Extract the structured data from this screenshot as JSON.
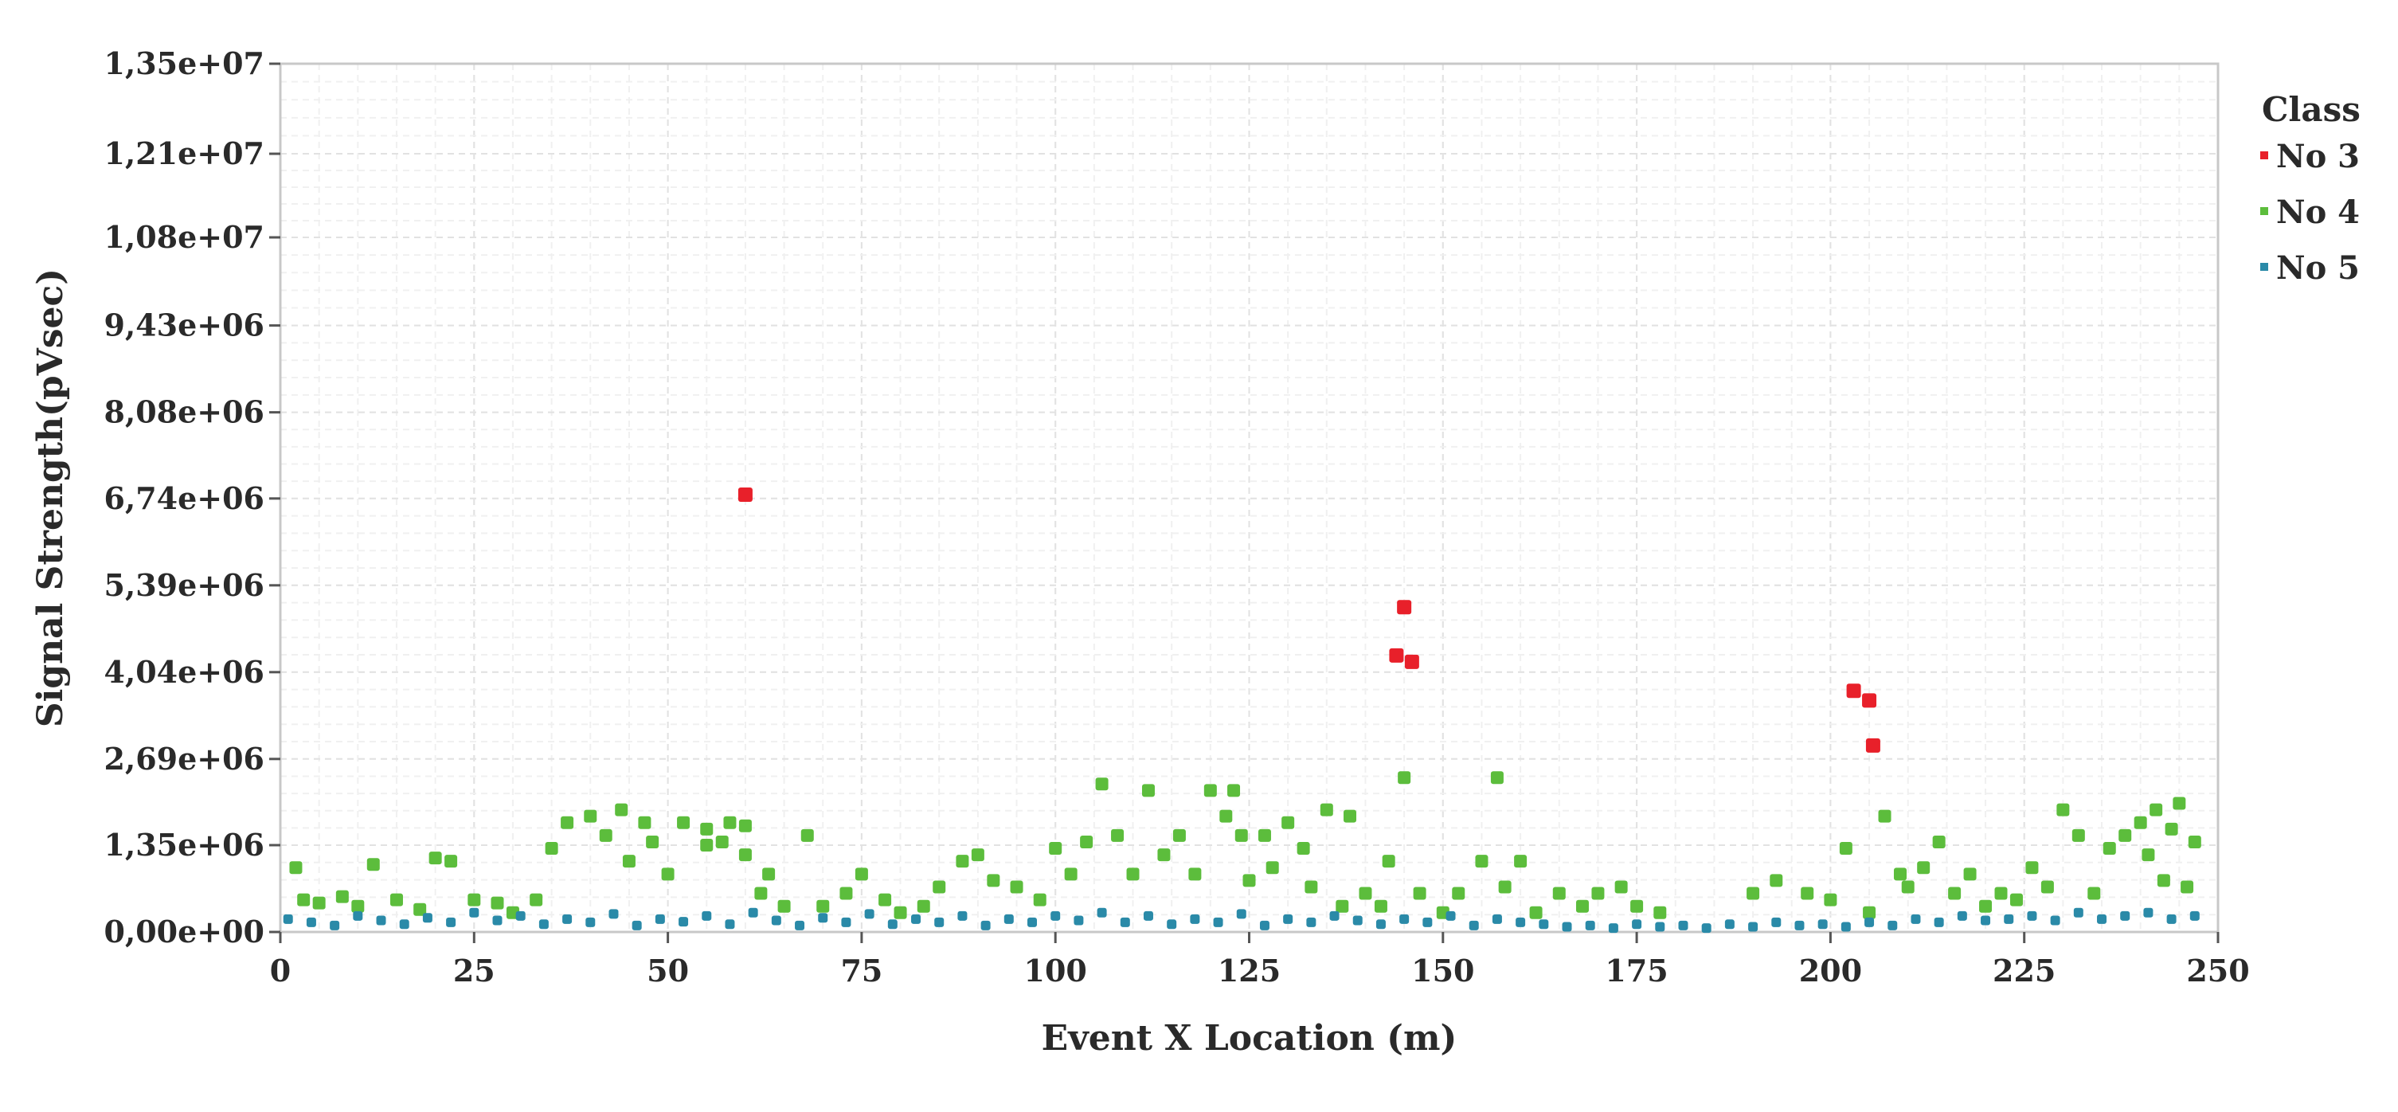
{
  "chart_data": {
    "type": "scatter",
    "title": "",
    "xlabel": "Event X Location (m)",
    "ylabel": "Signal Strength(pVsec)",
    "xlim": [
      0,
      250
    ],
    "ylim": [
      0,
      13500000
    ],
    "x_ticks": [
      0,
      25,
      50,
      75,
      100,
      125,
      150,
      175,
      200,
      225,
      250
    ],
    "x_tick_labels": [
      "0",
      "25",
      "50",
      "75",
      "100",
      "125",
      "150",
      "175",
      "200",
      "225",
      "250"
    ],
    "y_ticks": [
      0,
      1350000,
      2690000,
      4040000,
      5390000,
      6740000,
      8080000,
      9430000,
      10800000,
      12100000,
      13500000
    ],
    "y_tick_labels": [
      "0,00e+00",
      "1,35e+06",
      "2,69e+06",
      "4,04e+06",
      "5,39e+06",
      "6,74e+06",
      "8,08e+06",
      "9,43e+06",
      "1,08e+07",
      "1,21e+07",
      "1,35e+07"
    ],
    "grid": true,
    "legend_placement": "right",
    "legend_title": "Class",
    "series": [
      {
        "name": "No 3",
        "color": "#e8202a",
        "points": [
          [
            60,
            6800000
          ],
          [
            144,
            4300000
          ],
          [
            145,
            5050000
          ],
          [
            146,
            4200000
          ],
          [
            203,
            3750000
          ],
          [
            205,
            3600000
          ],
          [
            205.5,
            2900000
          ]
        ]
      },
      {
        "name": "No 4",
        "color": "#5cbd3c",
        "points": [
          [
            2,
            1000000
          ],
          [
            3,
            500000
          ],
          [
            5,
            450000
          ],
          [
            8,
            550000
          ],
          [
            10,
            400000
          ],
          [
            12,
            1050000
          ],
          [
            15,
            500000
          ],
          [
            18,
            350000
          ],
          [
            20,
            1150000
          ],
          [
            22,
            1100000
          ],
          [
            25,
            500000
          ],
          [
            28,
            450000
          ],
          [
            30,
            300000
          ],
          [
            33,
            500000
          ],
          [
            35,
            1300000
          ],
          [
            37,
            1700000
          ],
          [
            40,
            1800000
          ],
          [
            42,
            1500000
          ],
          [
            44,
            1900000
          ],
          [
            45,
            1100000
          ],
          [
            47,
            1700000
          ],
          [
            48,
            1400000
          ],
          [
            50,
            900000
          ],
          [
            52,
            1700000
          ],
          [
            55,
            1600000
          ],
          [
            55,
            1350000
          ],
          [
            57,
            1400000
          ],
          [
            58,
            1700000
          ],
          [
            60,
            1650000
          ],
          [
            60,
            1200000
          ],
          [
            62,
            600000
          ],
          [
            63,
            900000
          ],
          [
            65,
            400000
          ],
          [
            68,
            1500000
          ],
          [
            70,
            400000
          ],
          [
            73,
            600000
          ],
          [
            75,
            900000
          ],
          [
            78,
            500000
          ],
          [
            80,
            300000
          ],
          [
            83,
            400000
          ],
          [
            85,
            700000
          ],
          [
            88,
            1100000
          ],
          [
            90,
            1200000
          ],
          [
            92,
            800000
          ],
          [
            95,
            700000
          ],
          [
            98,
            500000
          ],
          [
            100,
            1300000
          ],
          [
            102,
            900000
          ],
          [
            104,
            1400000
          ],
          [
            106,
            2300000
          ],
          [
            108,
            1500000
          ],
          [
            110,
            900000
          ],
          [
            112,
            2200000
          ],
          [
            114,
            1200000
          ],
          [
            116,
            1500000
          ],
          [
            118,
            900000
          ],
          [
            120,
            2200000
          ],
          [
            122,
            1800000
          ],
          [
            123,
            2200000
          ],
          [
            124,
            1500000
          ],
          [
            125,
            800000
          ],
          [
            127,
            1500000
          ],
          [
            128,
            1000000
          ],
          [
            130,
            1700000
          ],
          [
            132,
            1300000
          ],
          [
            133,
            700000
          ],
          [
            135,
            1900000
          ],
          [
            137,
            400000
          ],
          [
            138,
            1800000
          ],
          [
            140,
            600000
          ],
          [
            142,
            400000
          ],
          [
            143,
            1100000
          ],
          [
            145,
            2400000
          ],
          [
            147,
            600000
          ],
          [
            150,
            300000
          ],
          [
            152,
            600000
          ],
          [
            155,
            1100000
          ],
          [
            157,
            2400000
          ],
          [
            158,
            700000
          ],
          [
            160,
            1100000
          ],
          [
            162,
            300000
          ],
          [
            165,
            600000
          ],
          [
            168,
            400000
          ],
          [
            170,
            600000
          ],
          [
            173,
            700000
          ],
          [
            175,
            400000
          ],
          [
            178,
            300000
          ],
          [
            190,
            600000
          ],
          [
            193,
            800000
          ],
          [
            197,
            600000
          ],
          [
            200,
            500000
          ],
          [
            202,
            1300000
          ],
          [
            205,
            300000
          ],
          [
            207,
            1800000
          ],
          [
            209,
            900000
          ],
          [
            210,
            700000
          ],
          [
            212,
            1000000
          ],
          [
            214,
            1400000
          ],
          [
            216,
            600000
          ],
          [
            218,
            900000
          ],
          [
            220,
            400000
          ],
          [
            222,
            600000
          ],
          [
            224,
            500000
          ],
          [
            226,
            1000000
          ],
          [
            228,
            700000
          ],
          [
            230,
            1900000
          ],
          [
            232,
            1500000
          ],
          [
            234,
            600000
          ],
          [
            236,
            1300000
          ],
          [
            238,
            1500000
          ],
          [
            240,
            1700000
          ],
          [
            241,
            1200000
          ],
          [
            242,
            1900000
          ],
          [
            243,
            800000
          ],
          [
            244,
            1600000
          ],
          [
            245,
            2000000
          ],
          [
            246,
            700000
          ],
          [
            247,
            1400000
          ]
        ]
      },
      {
        "name": "No 5",
        "color": "#2a8aa8",
        "points": [
          [
            1,
            200000
          ],
          [
            4,
            150000
          ],
          [
            7,
            100000
          ],
          [
            10,
            250000
          ],
          [
            13,
            180000
          ],
          [
            16,
            120000
          ],
          [
            19,
            220000
          ],
          [
            22,
            150000
          ],
          [
            25,
            300000
          ],
          [
            28,
            180000
          ],
          [
            31,
            250000
          ],
          [
            34,
            120000
          ],
          [
            37,
            200000
          ],
          [
            40,
            150000
          ],
          [
            43,
            280000
          ],
          [
            46,
            100000
          ],
          [
            49,
            200000
          ],
          [
            52,
            160000
          ],
          [
            55,
            250000
          ],
          [
            58,
            120000
          ],
          [
            61,
            300000
          ],
          [
            64,
            180000
          ],
          [
            67,
            100000
          ],
          [
            70,
            220000
          ],
          [
            73,
            150000
          ],
          [
            76,
            280000
          ],
          [
            79,
            120000
          ],
          [
            82,
            200000
          ],
          [
            85,
            150000
          ],
          [
            88,
            250000
          ],
          [
            91,
            100000
          ],
          [
            94,
            200000
          ],
          [
            97,
            150000
          ],
          [
            100,
            250000
          ],
          [
            103,
            180000
          ],
          [
            106,
            300000
          ],
          [
            109,
            150000
          ],
          [
            112,
            250000
          ],
          [
            115,
            120000
          ],
          [
            118,
            200000
          ],
          [
            121,
            150000
          ],
          [
            124,
            280000
          ],
          [
            127,
            100000
          ],
          [
            130,
            200000
          ],
          [
            133,
            150000
          ],
          [
            136,
            250000
          ],
          [
            139,
            180000
          ],
          [
            142,
            120000
          ],
          [
            145,
            200000
          ],
          [
            148,
            150000
          ],
          [
            151,
            250000
          ],
          [
            154,
            100000
          ],
          [
            157,
            200000
          ],
          [
            160,
            150000
          ],
          [
            163,
            120000
          ],
          [
            166,
            80000
          ],
          [
            169,
            100000
          ],
          [
            172,
            60000
          ],
          [
            175,
            120000
          ],
          [
            178,
            80000
          ],
          [
            181,
            100000
          ],
          [
            184,
            60000
          ],
          [
            187,
            120000
          ],
          [
            190,
            80000
          ],
          [
            193,
            150000
          ],
          [
            196,
            100000
          ],
          [
            199,
            120000
          ],
          [
            202,
            80000
          ],
          [
            205,
            150000
          ],
          [
            208,
            100000
          ],
          [
            211,
            200000
          ],
          [
            214,
            150000
          ],
          [
            217,
            250000
          ],
          [
            220,
            180000
          ],
          [
            223,
            200000
          ],
          [
            226,
            250000
          ],
          [
            229,
            180000
          ],
          [
            232,
            300000
          ],
          [
            235,
            200000
          ],
          [
            238,
            250000
          ],
          [
            241,
            300000
          ],
          [
            244,
            200000
          ],
          [
            247,
            250000
          ]
        ]
      }
    ]
  }
}
